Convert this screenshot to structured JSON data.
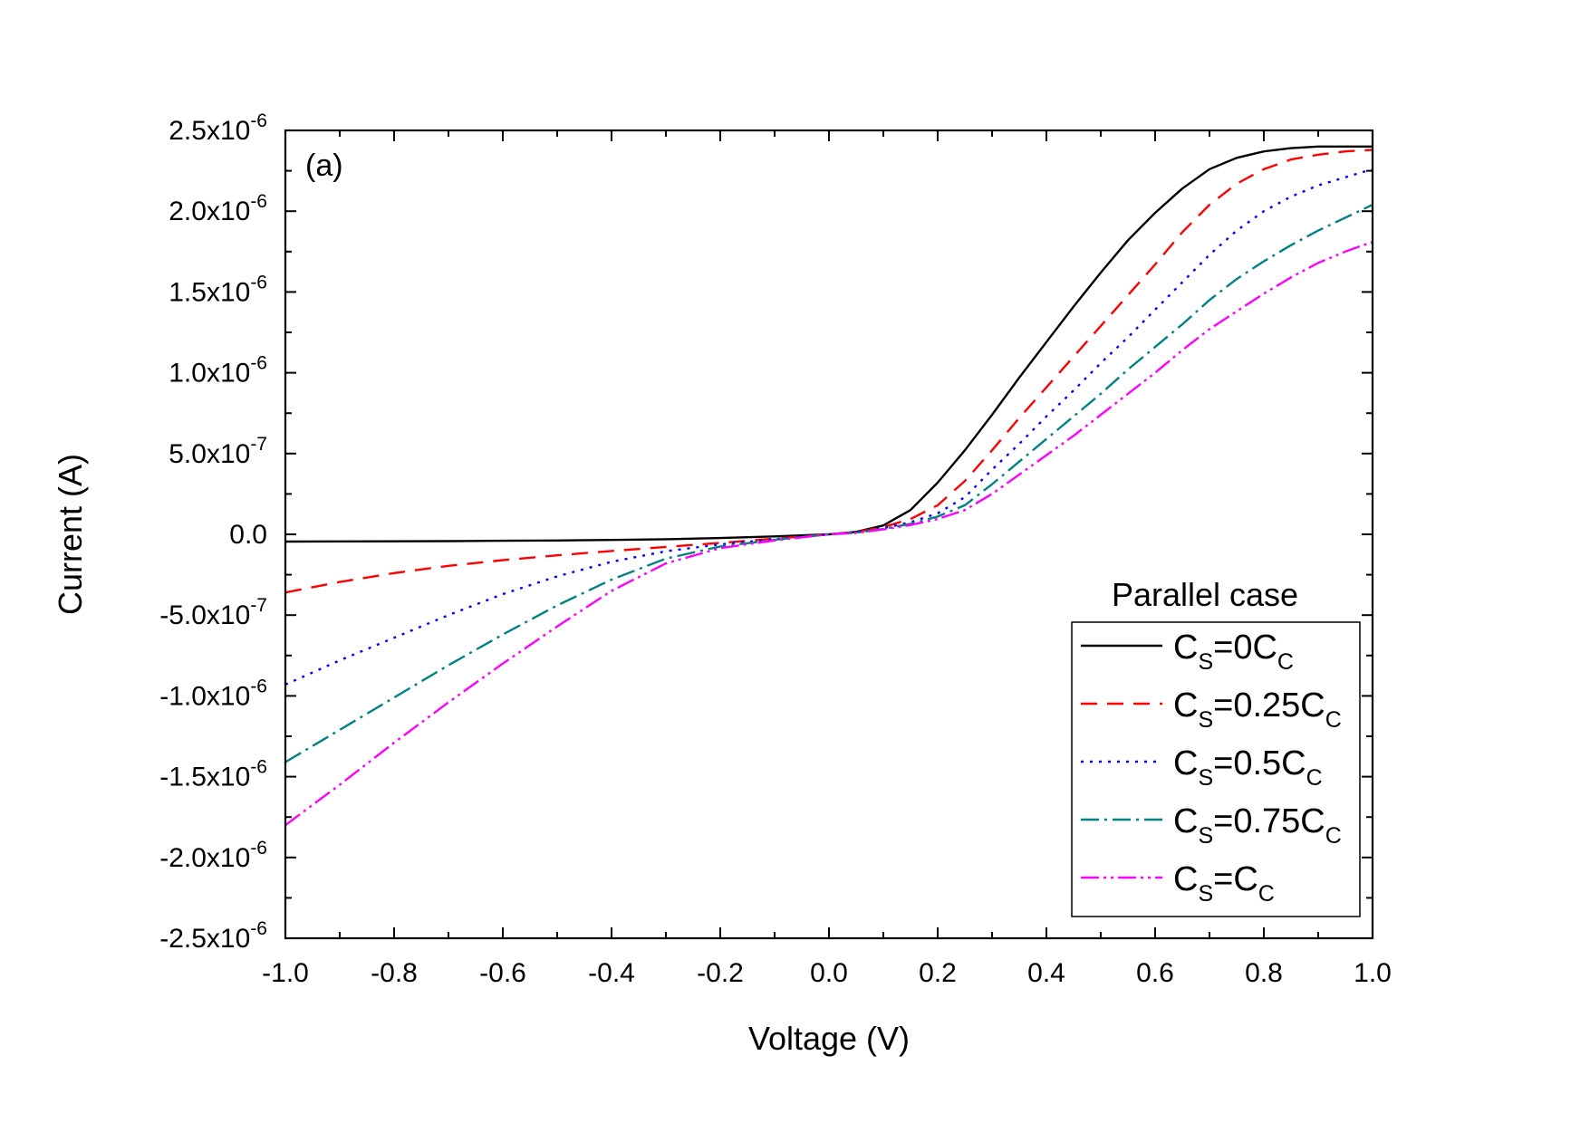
{
  "chart_data": {
    "type": "line",
    "title": "",
    "panel_label": "(a)",
    "xlabel": "Voltage (V)",
    "ylabel": "Current (A)",
    "xlim": [
      -1.0,
      1.0
    ],
    "ylim": [
      -2.5e-06,
      2.5e-06
    ],
    "grid": false,
    "x_ticks": [
      {
        "value": -1.0,
        "label": "-1.0"
      },
      {
        "value": -0.8,
        "label": "-0.8"
      },
      {
        "value": -0.6,
        "label": "-0.6"
      },
      {
        "value": -0.4,
        "label": "-0.4"
      },
      {
        "value": -0.2,
        "label": "-0.2"
      },
      {
        "value": 0.0,
        "label": "0.0"
      },
      {
        "value": 0.2,
        "label": "0.2"
      },
      {
        "value": 0.4,
        "label": "0.4"
      },
      {
        "value": 0.6,
        "label": "0.6"
      },
      {
        "value": 0.8,
        "label": "0.8"
      },
      {
        "value": 1.0,
        "label": "1.0"
      }
    ],
    "y_ticks": [
      {
        "value": 2.5e-06,
        "mantissa": "2.5x10",
        "exp": "-6"
      },
      {
        "value": 2e-06,
        "mantissa": "2.0x10",
        "exp": "-6"
      },
      {
        "value": 1.5e-06,
        "mantissa": "1.5x10",
        "exp": "-6"
      },
      {
        "value": 1e-06,
        "mantissa": "1.0x10",
        "exp": "-6"
      },
      {
        "value": 5e-07,
        "mantissa": "5.0x10",
        "exp": "-7"
      },
      {
        "value": 0.0,
        "mantissa": "0.0",
        "exp": ""
      },
      {
        "value": -5e-07,
        "mantissa": "-5.0x10",
        "exp": "-7"
      },
      {
        "value": -1e-06,
        "mantissa": "-1.0x10",
        "exp": "-6"
      },
      {
        "value": -1.5e-06,
        "mantissa": "-1.5x10",
        "exp": "-6"
      },
      {
        "value": -2e-06,
        "mantissa": "-2.0x10",
        "exp": "-6"
      },
      {
        "value": -2.5e-06,
        "mantissa": "-2.5x10",
        "exp": "-6"
      }
    ],
    "legend": {
      "title": "Parallel case",
      "position": "bottom-right"
    },
    "x": [
      -1.0,
      -0.9,
      -0.8,
      -0.7,
      -0.6,
      -0.5,
      -0.4,
      -0.3,
      -0.2,
      -0.1,
      0.0,
      0.05,
      0.1,
      0.15,
      0.2,
      0.25,
      0.3,
      0.35,
      0.4,
      0.45,
      0.5,
      0.55,
      0.6,
      0.65,
      0.7,
      0.75,
      0.8,
      0.85,
      0.9,
      0.95,
      1.0
    ],
    "series": [
      {
        "name": "C_S=0C_C",
        "label_parts": [
          "C",
          "S",
          "=0C",
          "C",
          ""
        ],
        "color": "#000000",
        "dash": "",
        "values": [
          -4.5e-08,
          -4.4e-08,
          -4.3e-08,
          -4.2e-08,
          -4e-08,
          -3.8e-08,
          -3.5e-08,
          -3e-08,
          -2.3e-08,
          -1.3e-08,
          0.0,
          1.5e-08,
          5.5e-08,
          1.5e-07,
          3.2e-07,
          5.2e-07,
          7.4e-07,
          9.7e-07,
          1.19e-06,
          1.41e-06,
          1.62e-06,
          1.82e-06,
          1.99e-06,
          2.14e-06,
          2.26e-06,
          2.33e-06,
          2.37e-06,
          2.39e-06,
          2.4e-06,
          2.4e-06,
          2.4e-06
        ]
      },
      {
        "name": "C_S=0.25C_C",
        "label_parts": [
          "C",
          "S",
          "=0.25C",
          "C",
          ""
        ],
        "color": "#ff0000",
        "dash": "18 11",
        "values": [
          -3.6e-07,
          -2.95e-07,
          -2.4e-07,
          -1.95e-07,
          -1.6e-07,
          -1.3e-07,
          -1.03e-07,
          -7.8e-08,
          -5.3e-08,
          -2.7e-08,
          0.0,
          1.3e-08,
          4.5e-08,
          9.5e-08,
          1.8e-07,
          3.3e-07,
          5.2e-07,
          7.2e-07,
          9.1e-07,
          1.1e-06,
          1.29e-06,
          1.48e-06,
          1.67e-06,
          1.87e-06,
          2.04e-06,
          2.17e-06,
          2.26e-06,
          2.32e-06,
          2.35e-06,
          2.37e-06,
          2.38e-06
        ]
      },
      {
        "name": "C_S=0.5C_C",
        "label_parts": [
          "C",
          "S",
          "=0.5C",
          "C",
          ""
        ],
        "color": "#0000ff",
        "dash": "3 7",
        "values": [
          -9.3e-07,
          -7.8e-07,
          -6.4e-07,
          -5e-07,
          -3.7e-07,
          -2.6e-07,
          -1.7e-07,
          -1.05e-07,
          -6.2e-08,
          -3e-08,
          0.0,
          1.1e-08,
          3.8e-08,
          7.5e-08,
          1.3e-07,
          2.3e-07,
          4e-07,
          5.6e-07,
          7.3e-07,
          8.9e-07,
          1.06e-06,
          1.22e-06,
          1.39e-06,
          1.56e-06,
          1.73e-06,
          1.88e-06,
          2e-06,
          2.09e-06,
          2.16e-06,
          2.21e-06,
          2.26e-06
        ]
      },
      {
        "name": "C_S=0.75C_C",
        "label_parts": [
          "C",
          "S",
          "=0.75C",
          "C",
          ""
        ],
        "color": "#008080",
        "dash": "20 6 3 6",
        "values": [
          -1.41e-06,
          -1.21e-06,
          -1.01e-06,
          -8.1e-07,
          -6.2e-07,
          -4.4e-07,
          -2.8e-07,
          -1.5e-07,
          -7.5e-08,
          -3.4e-08,
          0.0,
          1e-08,
          3.3e-08,
          6.5e-08,
          1.1e-07,
          1.8e-07,
          3.1e-07,
          4.5e-07,
          5.9e-07,
          7.3e-07,
          8.7e-07,
          1.02e-06,
          1.16e-06,
          1.3e-06,
          1.45e-06,
          1.58e-06,
          1.69e-06,
          1.79e-06,
          1.88e-06,
          1.96e-06,
          2.04e-06
        ]
      },
      {
        "name": "C_S=C_C",
        "label_parts": [
          "C",
          "S",
          "=C",
          "C",
          ""
        ],
        "color": "#ff00ff",
        "dash": "20 5 3 5 3 5",
        "values": [
          -1.8e-06,
          -1.55e-06,
          -1.29e-06,
          -1.04e-06,
          -8e-07,
          -5.7e-07,
          -3.5e-07,
          -1.8e-07,
          -8.5e-08,
          -3.8e-08,
          0.0,
          9e-09,
          3e-08,
          5.8e-08,
          9.5e-08,
          1.5e-07,
          2.5e-07,
          3.7e-07,
          4.9e-07,
          6.1e-07,
          7.4e-07,
          8.7e-07,
          1e-06,
          1.14e-06,
          1.27e-06,
          1.38e-06,
          1.49e-06,
          1.59e-06,
          1.68e-06,
          1.75e-06,
          1.81e-06
        ]
      }
    ]
  }
}
